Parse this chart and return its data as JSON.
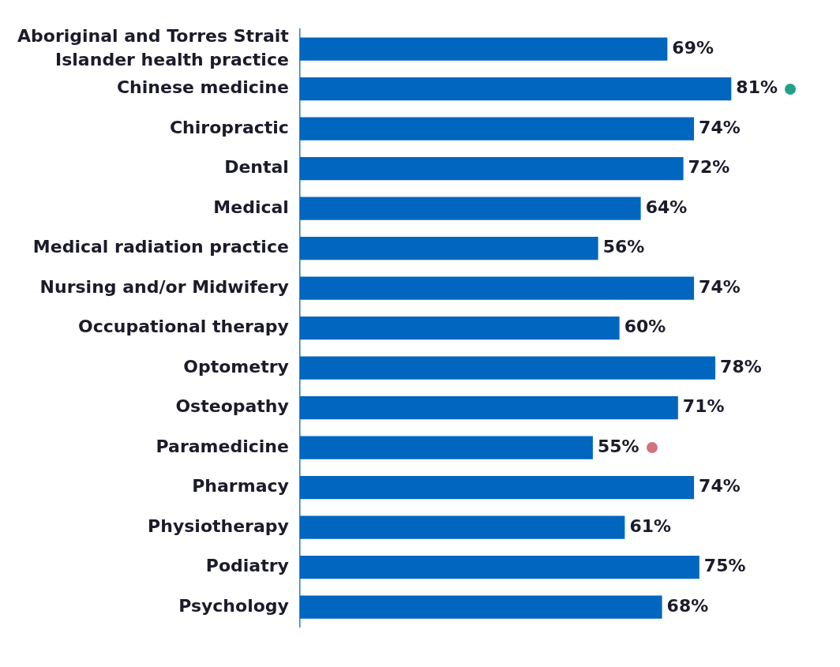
{
  "chart_data": {
    "type": "bar",
    "orientation": "horizontal",
    "categories": [
      "Aboriginal and Torres Strait Islander health practice",
      "Chinese medicine",
      "Chiropractic",
      "Dental",
      "Medical",
      "Medical radiation practice",
      "Nursing and/or Midwifery",
      "Occupational therapy",
      "Optometry",
      "Osteopathy",
      "Paramedicine",
      "Pharmacy",
      "Physiotherapy",
      "Podiatry",
      "Psychology"
    ],
    "values": [
      69,
      81,
      74,
      72,
      64,
      56,
      74,
      60,
      78,
      71,
      55,
      74,
      61,
      75,
      68
    ],
    "value_labels": [
      "69%",
      "81%",
      "74%",
      "72%",
      "64%",
      "56%",
      "74%",
      "60%",
      "78%",
      "71%",
      "55%",
      "74%",
      "61%",
      "75%",
      "68%"
    ],
    "color": "#0066bf",
    "grid": false,
    "legend": false,
    "tick_labels": "y"
  }
}
